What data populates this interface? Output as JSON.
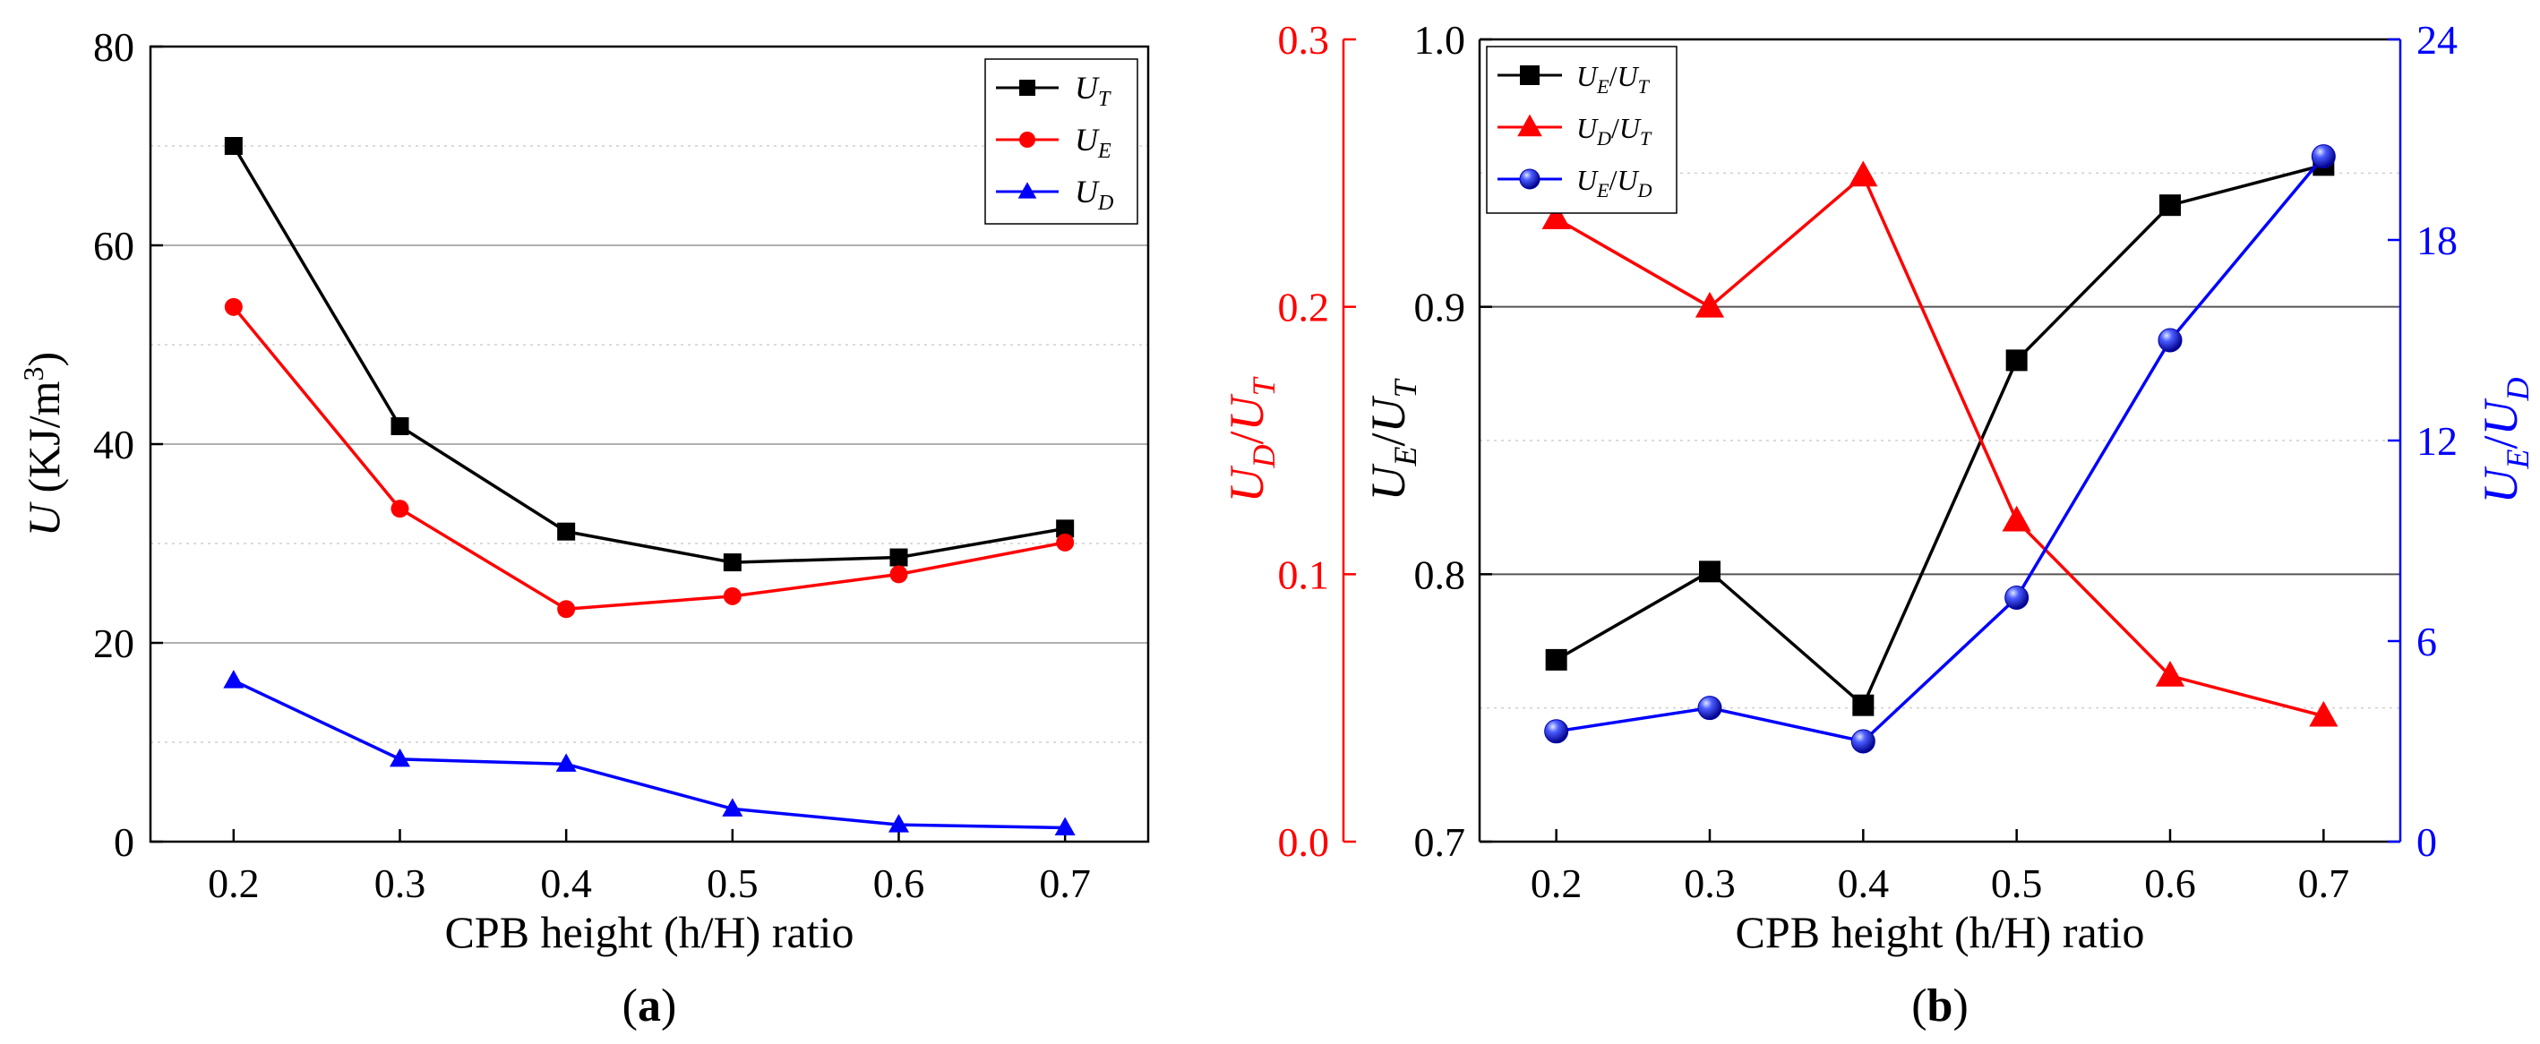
{
  "chart_data": [
    {
      "panel_label_pre": "(",
      "panel_label": "a",
      "panel_label_post": ")",
      "type": "line",
      "title": "",
      "xlabel": "CPB height (h/H) ratio",
      "ylabel": {
        "main": "U",
        "rest": " (KJ/m",
        "sup": "3",
        "close": ")"
      },
      "xlim": [
        0.15,
        0.75
      ],
      "ylim": [
        0,
        80
      ],
      "x_ticks": [
        0.2,
        0.3,
        0.4,
        0.5,
        0.6,
        0.7
      ],
      "x_tick_labels": [
        "0.2",
        "0.3",
        "0.4",
        "0.5",
        "0.6",
        "0.7"
      ],
      "y_ticks": [
        0,
        20,
        40,
        60,
        80
      ],
      "y_tick_labels": [
        "0",
        "20",
        "40",
        "60",
        "80"
      ],
      "grid": {
        "major_y": true,
        "minor_y": true
      },
      "legend_position": "top-right",
      "series": [
        {
          "name": "U",
          "sub": "T",
          "color": "#000000",
          "marker": "square",
          "x": [
            0.2,
            0.3,
            0.4,
            0.5,
            0.6,
            0.7
          ],
          "values": [
            70.0,
            41.8,
            31.2,
            28.1,
            28.6,
            31.5
          ]
        },
        {
          "name": "U",
          "sub": "E",
          "color": "#ff0000",
          "marker": "circle",
          "x": [
            0.2,
            0.3,
            0.4,
            0.5,
            0.6,
            0.7
          ],
          "values": [
            53.8,
            33.5,
            23.4,
            24.7,
            26.9,
            30.1
          ]
        },
        {
          "name": "U",
          "sub": "D",
          "color": "#0000ff",
          "marker": "triangle",
          "x": [
            0.2,
            0.3,
            0.4,
            0.5,
            0.6,
            0.7
          ],
          "values": [
            16.2,
            8.3,
            7.8,
            3.3,
            1.7,
            1.4
          ]
        }
      ]
    },
    {
      "panel_label_pre": "(",
      "panel_label": "b",
      "panel_label_post": ")",
      "type": "line",
      "title": "",
      "xlabel": "CPB height (h/H) ratio",
      "xlim": [
        0.15,
        0.75
      ],
      "x_ticks": [
        0.2,
        0.3,
        0.4,
        0.5,
        0.6,
        0.7
      ],
      "x_tick_labels": [
        "0.2",
        "0.3",
        "0.4",
        "0.5",
        "0.6",
        "0.7"
      ],
      "grid": {
        "major_y": true,
        "minor_y": true
      },
      "legend_position": "top-left",
      "axes": {
        "left_outer": {
          "label": [
            {
              "t": "U",
              "s": "D"
            },
            {
              "t": "/"
            },
            {
              "t": "U",
              "s": "T"
            }
          ],
          "color": "#ff0000",
          "lim": [
            0.0,
            0.3
          ],
          "ticks": [
            0.0,
            0.1,
            0.2,
            0.3
          ],
          "tick_labels": [
            "0.0",
            "0.1",
            "0.2",
            "0.3"
          ]
        },
        "left_inner": {
          "label": [
            {
              "t": "U",
              "s": "E"
            },
            {
              "t": "/"
            },
            {
              "t": "U",
              "s": "T"
            }
          ],
          "color": "#000000",
          "lim": [
            0.7,
            1.0
          ],
          "ticks": [
            0.7,
            0.8,
            0.9,
            1.0
          ],
          "tick_labels": [
            "0.7",
            "0.8",
            "0.9",
            "1.0"
          ]
        },
        "right": {
          "label": [
            {
              "t": "U",
              "s": "E"
            },
            {
              "t": "/"
            },
            {
              "t": "U",
              "s": "D"
            }
          ],
          "color": "#0000ff",
          "lim": [
            0,
            24
          ],
          "ticks": [
            0,
            6,
            12,
            18,
            24
          ],
          "tick_labels": [
            "0",
            "6",
            "12",
            "18",
            "24"
          ]
        }
      },
      "series": [
        {
          "name_parts": [
            {
              "t": "U",
              "s": "E"
            },
            {
              "t": "/"
            },
            {
              "t": "U",
              "s": "T"
            }
          ],
          "color": "#000000",
          "marker": "square",
          "axis": "left_inner",
          "x": [
            0.2,
            0.3,
            0.4,
            0.5,
            0.6,
            0.7
          ],
          "values": [
            0.768,
            0.801,
            0.751,
            0.88,
            0.938,
            0.953
          ]
        },
        {
          "name_parts": [
            {
              "t": "U",
              "s": "D"
            },
            {
              "t": "/"
            },
            {
              "t": "U",
              "s": "T"
            }
          ],
          "color": "#ff0000",
          "marker": "triangle",
          "axis": "left_outer",
          "x": [
            0.2,
            0.3,
            0.4,
            0.5,
            0.6,
            0.7
          ],
          "values": [
            0.233,
            0.2,
            0.249,
            0.12,
            0.062,
            0.047
          ]
        },
        {
          "name_parts": [
            {
              "t": "U",
              "s": "E"
            },
            {
              "t": "/"
            },
            {
              "t": "U",
              "s": "D"
            }
          ],
          "color": "#0000ff",
          "marker": "sphere",
          "axis": "right",
          "x": [
            0.2,
            0.3,
            0.4,
            0.5,
            0.6,
            0.7
          ],
          "values": [
            3.3,
            4.0,
            3.0,
            7.3,
            15.0,
            20.5
          ]
        }
      ]
    }
  ]
}
